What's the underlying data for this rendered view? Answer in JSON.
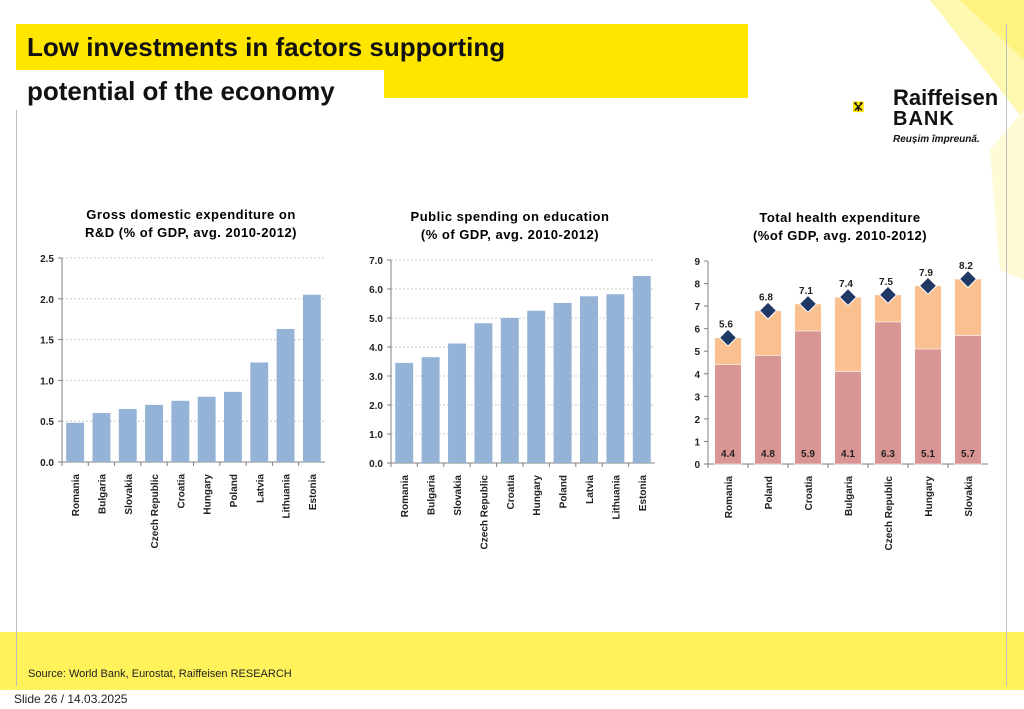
{
  "slide": {
    "title_line1": "Low investments in factors supporting",
    "title_line2": "potential of the economy",
    "source": "Source:  World Bank, Eurostat, Raiffeisen RESEARCH",
    "slide_number": "Slide 26 / 14.03.2025"
  },
  "logo": {
    "name_line1": "Raiffeisen",
    "name_line2": "BANK",
    "slogan": "Reușim împreună."
  },
  "colors": {
    "accent_yellow": "#ffe600",
    "bar_blue": "#95b3d7",
    "bar_red": "#d99594",
    "bar_peach": "#fac090",
    "marker": "#1f3864"
  },
  "chart_data": [
    {
      "type": "bar",
      "title_line1": "Gross domestic expenditure on",
      "title_line2": "R&D (% of GDP, avg. 2010-2012)",
      "categories": [
        "Romania",
        "Bulgaria",
        "Slovakia",
        "Czech Republic",
        "Croatia",
        "Hungary",
        "Poland",
        "Latvia",
        "Lithuania",
        "Estonia"
      ],
      "values": [
        0.48,
        0.6,
        0.65,
        0.7,
        0.75,
        0.8,
        0.86,
        1.22,
        1.63,
        2.05
      ],
      "ylim": [
        0,
        2.5
      ],
      "yticks": [
        "0.0",
        "0.5",
        "1.0",
        "1.5",
        "2.0",
        "2.5"
      ],
      "grid": true
    },
    {
      "type": "bar",
      "title_line1": "Public spending on education",
      "title_line2": "(% of GDP, avg. 2010-2012)",
      "categories": [
        "Romania",
        "Bulgaria",
        "Slovakia",
        "Czech Republic",
        "Croatia",
        "Hungary",
        "Poland",
        "Latvia",
        "Lithuania",
        "Estonia"
      ],
      "values": [
        3.45,
        3.65,
        4.12,
        4.82,
        5.0,
        5.25,
        5.52,
        5.75,
        5.82,
        6.45
      ],
      "ylim": [
        0,
        7
      ],
      "yticks": [
        "0.0",
        "1.0",
        "2.0",
        "3.0",
        "4.0",
        "5.0",
        "6.0",
        "7.0"
      ],
      "grid": true
    },
    {
      "type": "bar",
      "stacked": true,
      "title_line1": "Total health expenditure",
      "title_line2": "(%of GDP, avg. 2010-2012)",
      "categories": [
        "Romania",
        "Poland",
        "Croatia",
        "Bulgaria",
        "Czech Republic",
        "Hungary",
        "Slovakia"
      ],
      "series": [
        {
          "values": [
            4.4,
            4.8,
            5.9,
            4.1,
            6.3,
            5.1,
            5.7
          ],
          "labels": [
            "4.4",
            "4.8",
            "5.9",
            "4.1",
            "6.3",
            "5.1",
            "5.7"
          ]
        },
        {
          "values": [
            1.2,
            2.0,
            1.2,
            3.3,
            1.2,
            2.8,
            2.5
          ]
        }
      ],
      "totals": [
        5.6,
        6.8,
        7.1,
        7.4,
        7.5,
        7.9,
        8.2
      ],
      "total_labels": [
        "5.6",
        "6.8",
        "7.1",
        "7.4",
        "7.5",
        "7.9",
        "8.2"
      ],
      "ylim": [
        0,
        9
      ],
      "yticks": [
        "0",
        "1",
        "2",
        "3",
        "4",
        "5",
        "6",
        "7",
        "8",
        "9"
      ],
      "grid": false
    }
  ]
}
